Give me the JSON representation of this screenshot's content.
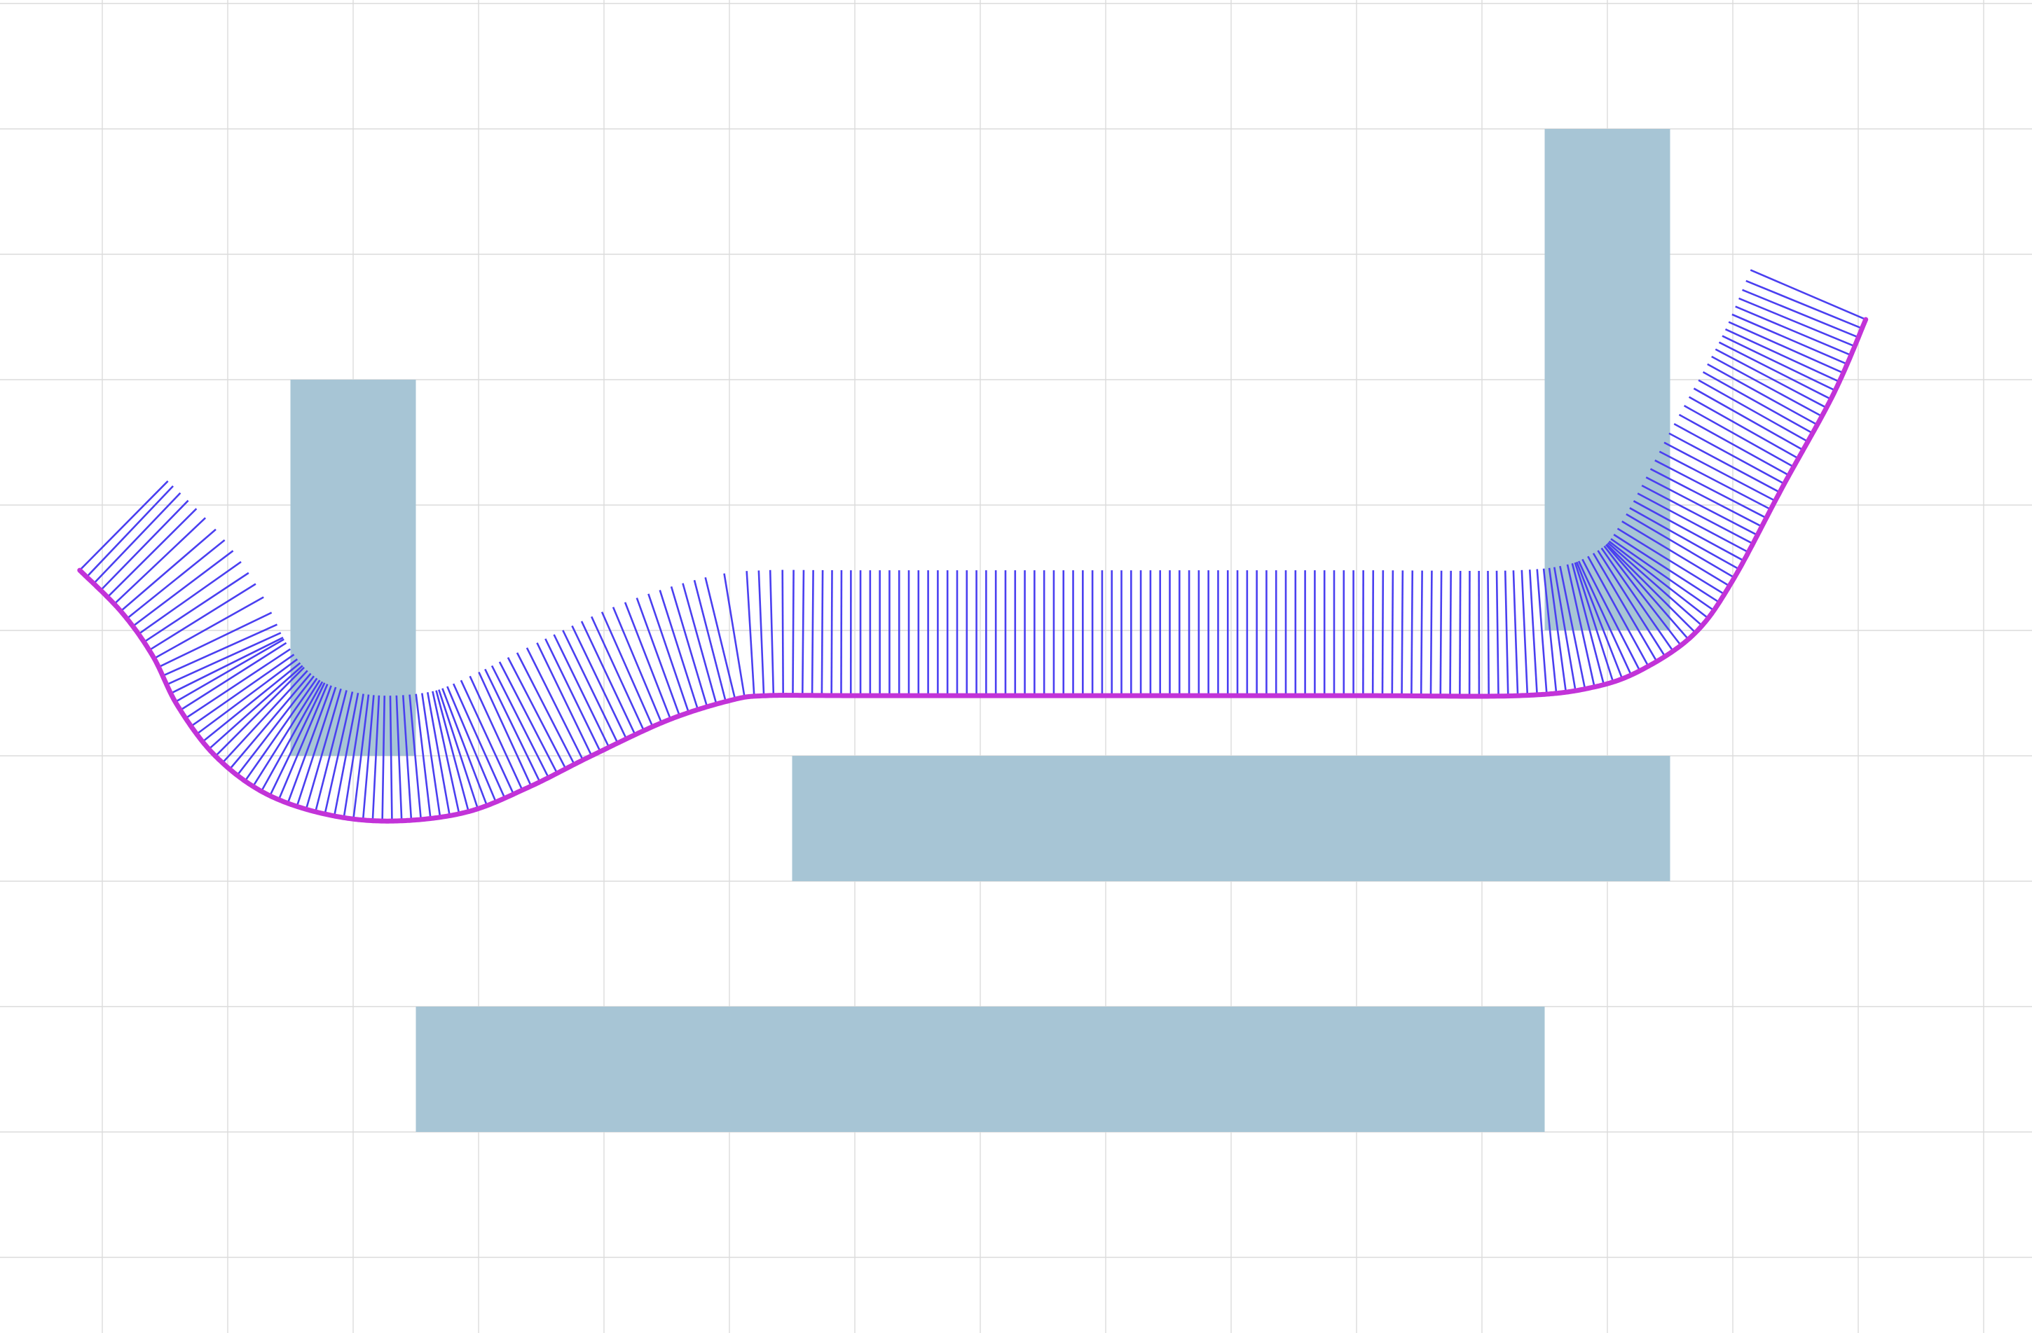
{
  "colors": {
    "background": "#ffffff",
    "grid": "#dcdcdc",
    "obstacle": "#a5c4d4",
    "path": "#c233d8",
    "normals": "#4a3ff0"
  },
  "grid": {
    "enabled": true,
    "spacing": 1
  },
  "obstacles": [
    {
      "name": "obstacle-vertical-left",
      "x": [
        2.5,
        3.5
      ],
      "y": [
        3,
        6
      ]
    },
    {
      "name": "obstacle-vertical-right",
      "x": [
        12.5,
        13.5
      ],
      "y": [
        1,
        5
      ]
    },
    {
      "name": "obstacle-horizontal-middle",
      "x": [
        6.5,
        13.5
      ],
      "y": [
        6,
        7
      ]
    },
    {
      "name": "obstacle-horizontal-bottom",
      "x": [
        3.5,
        12.5
      ],
      "y": [
        8,
        9
      ]
    }
  ],
  "path": {
    "points": [
      [
        0.82,
        4.52
      ],
      [
        1.15,
        4.85
      ],
      [
        1.4,
        5.2
      ],
      [
        1.6,
        5.6
      ],
      [
        1.9,
        6.0
      ],
      [
        2.3,
        6.3
      ],
      [
        2.8,
        6.47
      ],
      [
        3.32,
        6.52
      ],
      [
        3.9,
        6.45
      ],
      [
        4.4,
        6.25
      ],
      [
        4.9,
        6.0
      ],
      [
        5.5,
        5.72
      ],
      [
        6.0,
        5.56
      ],
      [
        6.3,
        5.52
      ],
      [
        7.0,
        5.52
      ],
      [
        9.0,
        5.52
      ],
      [
        11.0,
        5.52
      ],
      [
        12.3,
        5.52
      ],
      [
        12.9,
        5.45
      ],
      [
        13.3,
        5.3
      ],
      [
        13.7,
        5.02
      ],
      [
        14.0,
        4.6
      ],
      [
        14.4,
        3.85
      ],
      [
        14.8,
        3.12
      ],
      [
        15.06,
        2.52
      ]
    ],
    "normal_count": 220
  }
}
